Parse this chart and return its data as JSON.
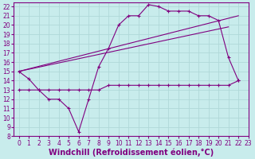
{
  "bg_color": "#c8ecec",
  "grid_color": "#b0d8d8",
  "line_color": "#800080",
  "xlabel": "Windchill (Refroidissement éolien,°C)",
  "xlabel_fontsize": 7,
  "xlim": [
    -0.5,
    23
  ],
  "ylim": [
    8,
    22.4
  ],
  "xticks": [
    0,
    1,
    2,
    3,
    4,
    5,
    6,
    7,
    8,
    9,
    10,
    11,
    12,
    13,
    14,
    15,
    16,
    17,
    18,
    19,
    20,
    21,
    22,
    23
  ],
  "yticks": [
    8,
    9,
    10,
    11,
    12,
    13,
    14,
    15,
    16,
    17,
    18,
    19,
    20,
    21,
    22
  ],
  "tick_fontsize": 5.5,
  "series_zigzag": {
    "x": [
      0,
      1,
      2,
      3,
      4,
      5,
      6,
      7,
      8,
      9,
      10,
      11,
      12,
      13,
      14,
      15,
      16,
      17,
      18,
      19,
      20,
      21,
      22
    ],
    "y": [
      15,
      14.2,
      13,
      12,
      12,
      11,
      8.5,
      12,
      15.5,
      17.5,
      20,
      21,
      21,
      22.2,
      22,
      21.5,
      21.5,
      21.5,
      21,
      21,
      20.5,
      16.5,
      14
    ]
  },
  "series_flat": {
    "x": [
      0,
      1,
      2,
      3,
      4,
      5,
      6,
      7,
      8,
      9,
      10,
      11,
      12,
      13,
      14,
      15,
      16,
      17,
      18,
      19,
      20,
      21,
      22
    ],
    "y": [
      13,
      13,
      13,
      13,
      13,
      13,
      13,
      13,
      13,
      13.5,
      13.5,
      13.5,
      13.5,
      13.5,
      13.5,
      13.5,
      13.5,
      13.5,
      13.5,
      13.5,
      13.5,
      13.5,
      14
    ]
  },
  "series_diag1": {
    "x": [
      0,
      22
    ],
    "y": [
      15,
      21
    ]
  },
  "series_diag2": {
    "x": [
      0,
      21
    ],
    "y": [
      15,
      19.8
    ]
  }
}
